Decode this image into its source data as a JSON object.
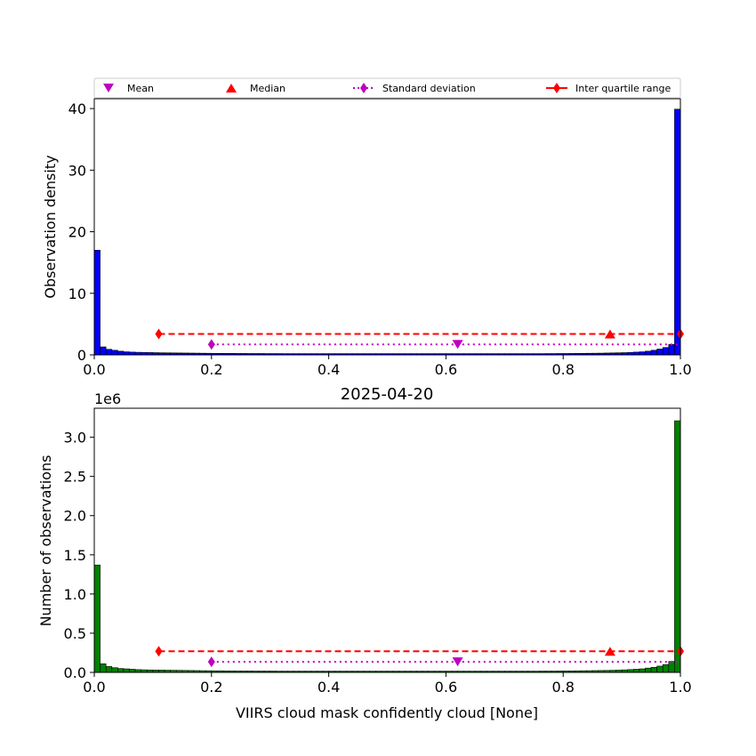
{
  "colors": {
    "top_bars": "#0000ff",
    "bottom_bars": "#008000",
    "mean": "#bf00bf",
    "median": "#ff0000",
    "std": "#bf00bf",
    "iqr": "#ff0000"
  },
  "legend": {
    "mean": "Mean",
    "median": "Median",
    "std": "Standard deviation",
    "iqr": "Inter quartile range"
  },
  "chart_data": [
    {
      "type": "bar",
      "title": "",
      "xlabel": "",
      "ylabel": "Observation density",
      "xlim": [
        0.0,
        1.0
      ],
      "ylim": [
        0,
        41.6
      ],
      "x_ticks": [
        "0.0",
        "0.2",
        "0.4",
        "0.6",
        "0.8",
        "1.0"
      ],
      "y_ticks": [
        "0",
        "10",
        "20",
        "30",
        "40"
      ],
      "bin_width": 0.01,
      "values": [
        17.0,
        1.3,
        0.9,
        0.75,
        0.6,
        0.5,
        0.45,
        0.42,
        0.4,
        0.38,
        0.36,
        0.34,
        0.33,
        0.32,
        0.31,
        0.3,
        0.29,
        0.28,
        0.27,
        0.26,
        0.25,
        0.25,
        0.24,
        0.24,
        0.23,
        0.23,
        0.22,
        0.22,
        0.22,
        0.21,
        0.21,
        0.21,
        0.2,
        0.2,
        0.2,
        0.2,
        0.2,
        0.2,
        0.2,
        0.2,
        0.2,
        0.2,
        0.2,
        0.2,
        0.2,
        0.2,
        0.2,
        0.2,
        0.2,
        0.2,
        0.2,
        0.2,
        0.2,
        0.2,
        0.2,
        0.2,
        0.2,
        0.2,
        0.2,
        0.2,
        0.2,
        0.2,
        0.2,
        0.2,
        0.2,
        0.2,
        0.2,
        0.2,
        0.2,
        0.2,
        0.2,
        0.2,
        0.2,
        0.2,
        0.2,
        0.2,
        0.2,
        0.21,
        0.21,
        0.22,
        0.22,
        0.23,
        0.24,
        0.25,
        0.26,
        0.27,
        0.28,
        0.3,
        0.32,
        0.34,
        0.36,
        0.4,
        0.45,
        0.5,
        0.6,
        0.75,
        0.95,
        1.2,
        1.7,
        39.9
      ],
      "stats": {
        "mean": {
          "x": 0.62,
          "y": 1.7
        },
        "median": {
          "x": 0.88,
          "y": 3.4
        },
        "std": {
          "x": [
            0.2,
            1.0
          ],
          "y": 1.7
        },
        "iqr": {
          "x": [
            0.11,
            1.0
          ],
          "y": 3.4
        }
      },
      "legend_position": "top"
    },
    {
      "type": "bar",
      "title": "2025-04-20",
      "xlabel": "VIIRS cloud mask confidently cloud [None]",
      "ylabel": "Number of observations",
      "y_offset_label": "1e6",
      "xlim": [
        0.0,
        1.0
      ],
      "ylim": [
        0,
        3.37
      ],
      "x_ticks": [
        "0.0",
        "0.2",
        "0.4",
        "0.6",
        "0.8",
        "1.0"
      ],
      "y_ticks": [
        "0.0",
        "0.5",
        "1.0",
        "1.5",
        "2.0",
        "2.5",
        "3.0"
      ],
      "bin_width": 0.01,
      "values": [
        1.37,
        0.11,
        0.075,
        0.06,
        0.05,
        0.045,
        0.04,
        0.035,
        0.033,
        0.031,
        0.03,
        0.029,
        0.028,
        0.027,
        0.026,
        0.025,
        0.024,
        0.023,
        0.022,
        0.021,
        0.02,
        0.02,
        0.019,
        0.019,
        0.018,
        0.018,
        0.018,
        0.017,
        0.017,
        0.017,
        0.017,
        0.016,
        0.016,
        0.016,
        0.016,
        0.016,
        0.016,
        0.016,
        0.016,
        0.016,
        0.016,
        0.016,
        0.016,
        0.016,
        0.016,
        0.016,
        0.016,
        0.016,
        0.016,
        0.016,
        0.016,
        0.016,
        0.016,
        0.016,
        0.016,
        0.016,
        0.016,
        0.016,
        0.016,
        0.016,
        0.016,
        0.016,
        0.016,
        0.016,
        0.016,
        0.016,
        0.016,
        0.016,
        0.016,
        0.016,
        0.016,
        0.016,
        0.016,
        0.016,
        0.016,
        0.016,
        0.017,
        0.017,
        0.017,
        0.018,
        0.018,
        0.019,
        0.02,
        0.021,
        0.022,
        0.023,
        0.024,
        0.025,
        0.027,
        0.029,
        0.032,
        0.036,
        0.04,
        0.045,
        0.055,
        0.065,
        0.08,
        0.1,
        0.14,
        3.21
      ],
      "stats": {
        "mean": {
          "x": 0.62,
          "y": 0.135
        },
        "median": {
          "x": 0.88,
          "y": 0.27
        },
        "std": {
          "x": [
            0.2,
            1.0
          ],
          "y": 0.135
        },
        "iqr": {
          "x": [
            0.11,
            1.0
          ],
          "y": 0.27
        }
      }
    }
  ]
}
